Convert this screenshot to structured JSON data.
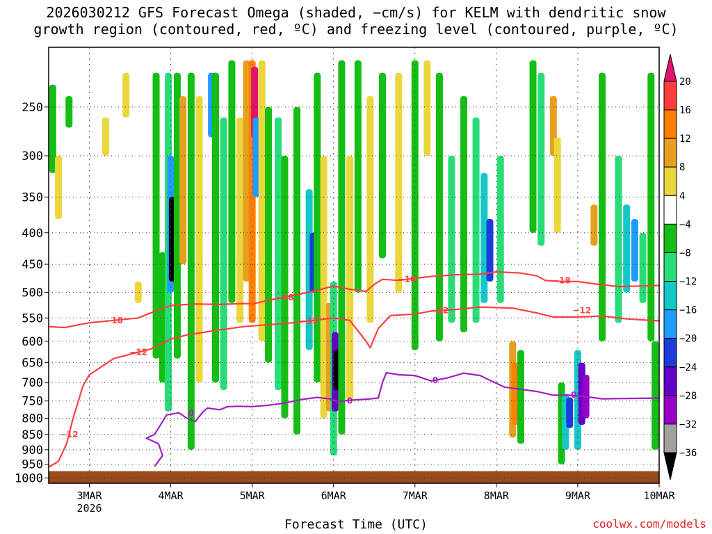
{
  "title_line1": "2026030212 GFS Forecast Omega (shaded, −cm/s) for KELM with dendritic snow",
  "title_line2": "growth region (contoured, red, ºC) and freezing level (contoured, purple, ºC)",
  "xlabel": "Forecast Time (UTC)",
  "credit": "coolwx.com/models",
  "chart_data": {
    "type": "heatmap",
    "x_ticks": [
      {
        "day": 3,
        "label": "3MAR",
        "sub": "2026"
      },
      {
        "day": 4,
        "label": "4MAR",
        "sub": ""
      },
      {
        "day": 5,
        "label": "5MAR",
        "sub": ""
      },
      {
        "day": 6,
        "label": "6MAR",
        "sub": ""
      },
      {
        "day": 7,
        "label": "7MAR",
        "sub": ""
      },
      {
        "day": 8,
        "label": "8MAR",
        "sub": ""
      },
      {
        "day": 9,
        "label": "9MAR",
        "sub": ""
      },
      {
        "day": 10,
        "label": "10MAR",
        "sub": ""
      }
    ],
    "x_range_day": [
      2.5,
      10.0
    ],
    "y_ticks": [
      250,
      300,
      350,
      400,
      450,
      500,
      550,
      600,
      650,
      700,
      750,
      800,
      850,
      900,
      950,
      1000
    ],
    "y_range_hpa": [
      200,
      1020
    ],
    "y_scale": "log",
    "grid": true,
    "colorbar": {
      "labels": [
        "20",
        "16",
        "12",
        "8",
        "4",
        "−4",
        "−8",
        "−12",
        "−16",
        "−20",
        "−24",
        "−28",
        "−32",
        "−36"
      ],
      "colors": [
        "#e0146e",
        "#ff3c3c",
        "#ff7f00",
        "#e6a020",
        "#ebd73c",
        "#ffffff",
        "#14be14",
        "#28dc78",
        "#14c8c8",
        "#1e9bff",
        "#1e3cdc",
        "#6400c8",
        "#9600c8",
        "#a0a0a0",
        "#000000"
      ]
    },
    "omega_cells": [
      {
        "day": 2.55,
        "p1": 230,
        "p2": 320,
        "c": 6
      },
      {
        "day": 2.62,
        "p1": 300,
        "p2": 380,
        "c": 4
      },
      {
        "day": 2.75,
        "p1": 240,
        "p2": 270,
        "c": 6
      },
      {
        "day": 3.2,
        "p1": 260,
        "p2": 300,
        "c": 4
      },
      {
        "day": 3.45,
        "p1": 220,
        "p2": 260,
        "c": 4
      },
      {
        "day": 3.6,
        "p1": 480,
        "p2": 520,
        "c": 4
      },
      {
        "day": 3.82,
        "p1": 220,
        "p2": 640,
        "c": 6
      },
      {
        "day": 3.9,
        "p1": 430,
        "p2": 700,
        "c": 6
      },
      {
        "day": 3.97,
        "p1": 220,
        "p2": 780,
        "c": 7
      },
      {
        "day": 4.0,
        "p1": 300,
        "p2": 500,
        "c": 9
      },
      {
        "day": 4.02,
        "p1": 350,
        "p2": 480,
        "c": 14
      },
      {
        "day": 4.08,
        "p1": 220,
        "p2": 640,
        "c": 6
      },
      {
        "day": 4.15,
        "p1": 240,
        "p2": 450,
        "c": 3
      },
      {
        "day": 4.25,
        "p1": 220,
        "p2": 900,
        "c": 6
      },
      {
        "day": 4.35,
        "p1": 240,
        "p2": 700,
        "c": 4
      },
      {
        "day": 4.5,
        "p1": 220,
        "p2": 280,
        "c": 9
      },
      {
        "day": 4.55,
        "p1": 220,
        "p2": 700,
        "c": 6
      },
      {
        "day": 4.65,
        "p1": 260,
        "p2": 720,
        "c": 7
      },
      {
        "day": 4.75,
        "p1": 210,
        "p2": 520,
        "c": 6
      },
      {
        "day": 4.85,
        "p1": 260,
        "p2": 560,
        "c": 4
      },
      {
        "day": 4.93,
        "p1": 210,
        "p2": 480,
        "c": 3
      },
      {
        "day": 5.0,
        "p1": 210,
        "p2": 560,
        "c": 2
      },
      {
        "day": 5.03,
        "p1": 215,
        "p2": 280,
        "c": 0
      },
      {
        "day": 5.05,
        "p1": 260,
        "p2": 350,
        "c": 9
      },
      {
        "day": 5.12,
        "p1": 210,
        "p2": 600,
        "c": 4
      },
      {
        "day": 5.2,
        "p1": 250,
        "p2": 650,
        "c": 6
      },
      {
        "day": 5.32,
        "p1": 260,
        "p2": 720,
        "c": 7
      },
      {
        "day": 5.4,
        "p1": 300,
        "p2": 800,
        "c": 6
      },
      {
        "day": 5.55,
        "p1": 250,
        "p2": 850,
        "c": 6
      },
      {
        "day": 5.7,
        "p1": 340,
        "p2": 620,
        "c": 8
      },
      {
        "day": 5.75,
        "p1": 400,
        "p2": 500,
        "c": 10
      },
      {
        "day": 5.8,
        "p1": 220,
        "p2": 700,
        "c": 6
      },
      {
        "day": 5.88,
        "p1": 300,
        "p2": 800,
        "c": 4
      },
      {
        "day": 5.95,
        "p1": 520,
        "p2": 780,
        "c": 3
      },
      {
        "day": 6.0,
        "p1": 480,
        "p2": 920,
        "c": 7
      },
      {
        "day": 6.02,
        "p1": 580,
        "p2": 780,
        "c": 11
      },
      {
        "day": 6.04,
        "p1": 620,
        "p2": 720,
        "c": 14
      },
      {
        "day": 6.1,
        "p1": 210,
        "p2": 850,
        "c": 6
      },
      {
        "day": 6.2,
        "p1": 300,
        "p2": 750,
        "c": 4
      },
      {
        "day": 6.3,
        "p1": 210,
        "p2": 500,
        "c": 6
      },
      {
        "day": 6.45,
        "p1": 240,
        "p2": 560,
        "c": 4
      },
      {
        "day": 6.6,
        "p1": 220,
        "p2": 440,
        "c": 6
      },
      {
        "day": 6.8,
        "p1": 220,
        "p2": 500,
        "c": 4
      },
      {
        "day": 7.0,
        "p1": 210,
        "p2": 620,
        "c": 6
      },
      {
        "day": 7.15,
        "p1": 210,
        "p2": 300,
        "c": 4
      },
      {
        "day": 7.3,
        "p1": 220,
        "p2": 600,
        "c": 6
      },
      {
        "day": 7.45,
        "p1": 300,
        "p2": 560,
        "c": 7
      },
      {
        "day": 7.6,
        "p1": 240,
        "p2": 580,
        "c": 6
      },
      {
        "day": 7.75,
        "p1": 260,
        "p2": 560,
        "c": 7
      },
      {
        "day": 7.85,
        "p1": 320,
        "p2": 520,
        "c": 8
      },
      {
        "day": 7.92,
        "p1": 380,
        "p2": 480,
        "c": 10
      },
      {
        "day": 8.05,
        "p1": 300,
        "p2": 520,
        "c": 7
      },
      {
        "day": 8.2,
        "p1": 600,
        "p2": 860,
        "c": 3
      },
      {
        "day": 8.23,
        "p1": 650,
        "p2": 820,
        "c": 2
      },
      {
        "day": 8.3,
        "p1": 620,
        "p2": 880,
        "c": 6
      },
      {
        "day": 8.45,
        "p1": 210,
        "p2": 400,
        "c": 6
      },
      {
        "day": 8.55,
        "p1": 220,
        "p2": 420,
        "c": 7
      },
      {
        "day": 8.7,
        "p1": 240,
        "p2": 300,
        "c": 3
      },
      {
        "day": 8.75,
        "p1": 280,
        "p2": 400,
        "c": 4
      },
      {
        "day": 8.8,
        "p1": 700,
        "p2": 950,
        "c": 6
      },
      {
        "day": 8.85,
        "p1": 730,
        "p2": 900,
        "c": 8
      },
      {
        "day": 8.9,
        "p1": 740,
        "p2": 830,
        "c": 10
      },
      {
        "day": 9.0,
        "p1": 620,
        "p2": 900,
        "c": 8
      },
      {
        "day": 9.05,
        "p1": 650,
        "p2": 820,
        "c": 11
      },
      {
        "day": 9.1,
        "p1": 680,
        "p2": 800,
        "c": 12
      },
      {
        "day": 9.2,
        "p1": 360,
        "p2": 420,
        "c": 3
      },
      {
        "day": 9.3,
        "p1": 220,
        "p2": 600,
        "c": 6
      },
      {
        "day": 9.5,
        "p1": 300,
        "p2": 560,
        "c": 7
      },
      {
        "day": 9.6,
        "p1": 360,
        "p2": 500,
        "c": 8
      },
      {
        "day": 9.7,
        "p1": 380,
        "p2": 480,
        "c": 9
      },
      {
        "day": 9.8,
        "p1": 400,
        "p2": 520,
        "c": 7
      },
      {
        "day": 9.9,
        "p1": 220,
        "p2": 600,
        "c": 6
      },
      {
        "day": 9.95,
        "p1": 600,
        "p2": 900,
        "c": 6
      }
    ],
    "contours": [
      {
        "label": "−18",
        "color": "#ff4040",
        "points": [
          [
            2.5,
            568
          ],
          [
            2.7,
            570
          ],
          [
            3.0,
            560
          ],
          [
            3.3,
            555
          ],
          [
            3.6,
            550
          ],
          [
            3.75,
            540
          ],
          [
            4.0,
            525
          ],
          [
            4.3,
            522
          ],
          [
            4.6,
            523
          ],
          [
            4.9,
            521
          ],
          [
            5.0,
            522
          ],
          [
            5.2,
            515
          ],
          [
            5.5,
            506
          ],
          [
            5.8,
            496
          ],
          [
            6.0,
            488
          ],
          [
            6.2,
            494
          ],
          [
            6.4,
            498
          ],
          [
            6.5,
            485
          ],
          [
            6.6,
            476
          ],
          [
            6.8,
            478
          ],
          [
            7.0,
            474
          ],
          [
            7.2,
            471
          ],
          [
            7.5,
            468
          ],
          [
            7.8,
            467
          ],
          [
            8.0,
            463
          ],
          [
            8.3,
            465
          ],
          [
            8.5,
            470
          ],
          [
            8.6,
            478
          ],
          [
            8.8,
            480
          ],
          [
            9.0,
            480
          ],
          [
            9.2,
            484
          ],
          [
            9.5,
            489
          ],
          [
            9.8,
            488
          ],
          [
            10.0,
            487
          ]
        ],
        "labels": [
          [
            3.3,
            555
          ],
          [
            5.4,
            510
          ],
          [
            6.9,
            476
          ],
          [
            8.8,
            478
          ]
        ]
      },
      {
        "label": "−12",
        "color": "#ff4040",
        "points": [
          [
            2.5,
            960
          ],
          [
            2.62,
            940
          ],
          [
            2.72,
            880
          ],
          [
            2.8,
            800
          ],
          [
            2.92,
            710
          ],
          [
            3.0,
            680
          ],
          [
            3.3,
            640
          ],
          [
            3.6,
            625
          ],
          [
            3.75,
            618
          ],
          [
            4.0,
            595
          ],
          [
            4.2,
            586
          ],
          [
            4.6,
            575
          ],
          [
            4.9,
            568
          ],
          [
            5.2,
            564
          ],
          [
            5.5,
            560
          ],
          [
            5.8,
            554
          ],
          [
            6.0,
            550
          ],
          [
            6.2,
            555
          ],
          [
            6.4,
            600
          ],
          [
            6.45,
            615
          ],
          [
            6.55,
            572
          ],
          [
            6.7,
            545
          ],
          [
            7.0,
            542
          ],
          [
            7.2,
            536
          ],
          [
            7.5,
            533
          ],
          [
            7.8,
            528
          ],
          [
            8.2,
            530
          ],
          [
            8.5,
            540
          ],
          [
            8.7,
            548
          ],
          [
            9.0,
            548
          ],
          [
            9.3,
            546
          ],
          [
            9.6,
            552
          ],
          [
            10.0,
            556
          ]
        ],
        "labels": [
          [
            2.75,
            850
          ],
          [
            3.6,
            625
          ],
          [
            5.7,
            556
          ],
          [
            7.3,
            535
          ],
          [
            9.05,
            535
          ]
        ]
      },
      {
        "label": "0",
        "color": "#a020c0",
        "points": [
          [
            3.8,
            958
          ],
          [
            3.9,
            920
          ],
          [
            3.85,
            880
          ],
          [
            3.7,
            862
          ],
          [
            3.8,
            850
          ],
          [
            3.85,
            830
          ],
          [
            3.95,
            790
          ],
          [
            4.1,
            784
          ],
          [
            4.2,
            800
          ],
          [
            4.3,
            810
          ],
          [
            4.4,
            780
          ],
          [
            4.45,
            770
          ],
          [
            4.6,
            775
          ],
          [
            4.7,
            766
          ],
          [
            4.85,
            765
          ],
          [
            5.0,
            766
          ],
          [
            5.2,
            762
          ],
          [
            5.4,
            756
          ],
          [
            5.6,
            746
          ],
          [
            5.8,
            740
          ],
          [
            5.95,
            744
          ],
          [
            6.05,
            752
          ],
          [
            6.2,
            748
          ],
          [
            6.4,
            745
          ],
          [
            6.55,
            742
          ],
          [
            6.6,
            700
          ],
          [
            6.65,
            675
          ],
          [
            6.8,
            680
          ],
          [
            7.0,
            682
          ],
          [
            7.2,
            696
          ],
          [
            7.4,
            688
          ],
          [
            7.6,
            676
          ],
          [
            7.8,
            682
          ],
          [
            7.95,
            697
          ],
          [
            8.1,
            712
          ],
          [
            8.3,
            718
          ],
          [
            8.5,
            724
          ],
          [
            8.7,
            734
          ],
          [
            8.9,
            734
          ],
          [
            9.1,
            738
          ],
          [
            9.3,
            744
          ],
          [
            9.6,
            743
          ],
          [
            10.0,
            742
          ]
        ],
        "labels": [
          [
            4.25,
            785
          ],
          [
            6.2,
            750
          ],
          [
            7.25,
            694
          ],
          [
            8.95,
            733
          ]
        ]
      }
    ],
    "terrain_top_hpa": 975
  }
}
